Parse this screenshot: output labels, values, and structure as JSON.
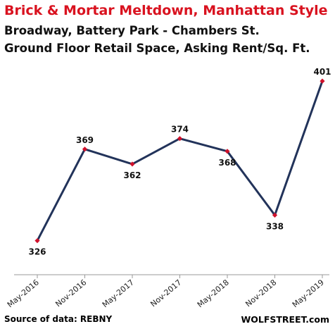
{
  "chart_data": {
    "type": "line",
    "title": "Brick & Mortar Meltdown,  Manhattan Style",
    "subtitle_lines": [
      "Broadway, Battery Park - Chambers St.",
      "Ground Floor Retail Space, Asking Rent/Sq. Ft."
    ],
    "categories": [
      "May-2016",
      "Nov-2016",
      "May-2017",
      "Nov-2017",
      "May-2018",
      "Nov-2018",
      "May-2019"
    ],
    "series": [
      {
        "name": "",
        "values": [
          326,
          369,
          362,
          374,
          368,
          338,
          401
        ]
      }
    ],
    "ylim": [
      310,
      406
    ],
    "y_axis_visible": false,
    "grid": false,
    "line_color": "#22335a",
    "marker_color": "#d0112b"
  },
  "footer": {
    "source": "Source of data: REBNY",
    "brand": "WOLFSTREET.com"
  }
}
